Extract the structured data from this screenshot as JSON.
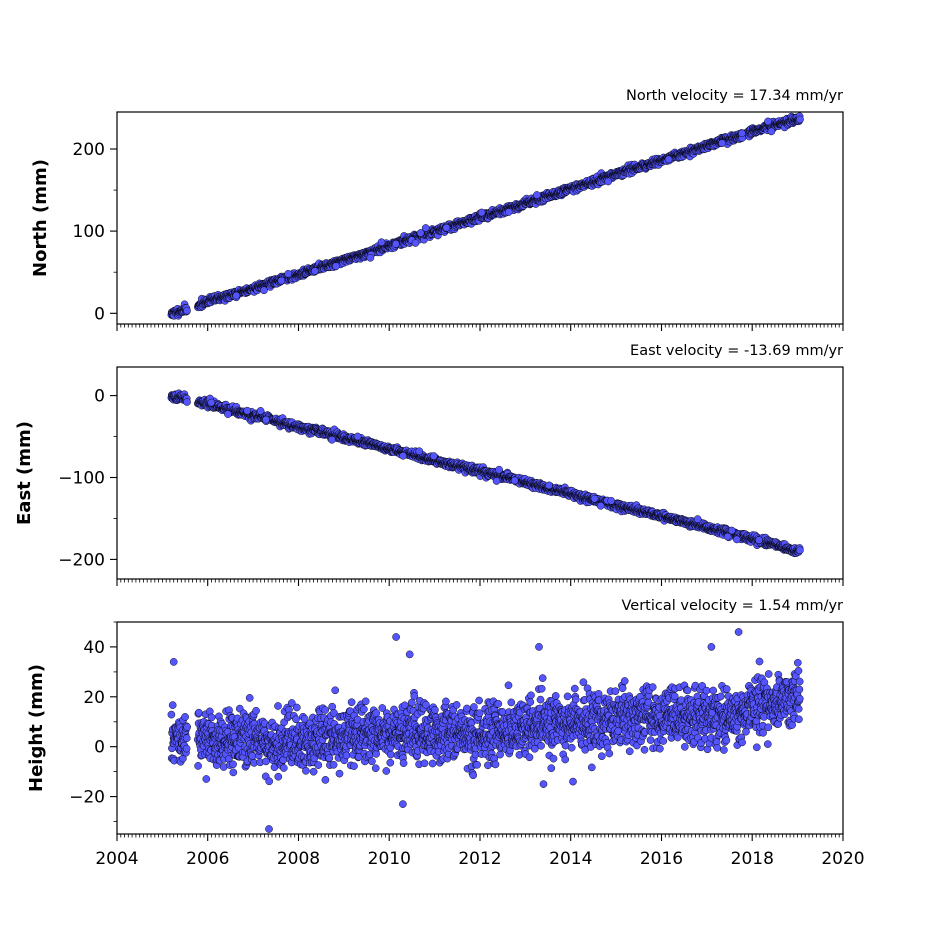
{
  "chart_data": [
    {
      "type": "scatter",
      "title": "North velocity = 17.34 mm/yr",
      "ylabel": "North (mm)",
      "xlabel": "",
      "xlim": [
        2004,
        2020
      ],
      "ylim": [
        -13,
        245
      ],
      "yticks": [
        0,
        100,
        200
      ],
      "ytick_labels": [
        "0",
        "100",
        "200"
      ],
      "show_xtick_labels": false,
      "grid": false,
      "marker_color": "#5555ff",
      "edge_color": "#000000",
      "data_start": 2005.2,
      "data_end": 2019.05,
      "series": [
        {
          "x": [
            2005.2,
            2005.3,
            2005.4,
            2005.5,
            2005.8,
            2006.0,
            2006.5,
            2007.0,
            2007.5,
            2008.0,
            2008.5,
            2009.0,
            2009.5,
            2010.0,
            2010.5,
            2011.0,
            2011.5,
            2012.0,
            2012.5,
            2013.0,
            2013.5,
            2014.0,
            2014.5,
            2015.0,
            2015.5,
            2016.0,
            2016.5,
            2017.0,
            2017.5,
            2018.0,
            2018.5,
            2019.0
          ],
          "y": [
            0,
            1,
            3,
            4,
            10,
            15,
            22,
            30,
            39,
            47,
            56,
            65,
            73,
            82,
            91,
            99,
            108,
            117,
            125,
            134,
            143,
            152,
            160,
            169,
            178,
            186,
            195,
            204,
            212,
            221,
            229,
            236
          ]
        }
      ]
    },
    {
      "type": "scatter",
      "title": "East velocity = -13.69 mm/yr",
      "ylabel": "East (mm)",
      "xlabel": "",
      "xlim": [
        2004,
        2020
      ],
      "ylim": [
        -224,
        35
      ],
      "yticks": [
        0,
        -100,
        -200
      ],
      "ytick_labels": [
        "0",
        "−100",
        "−200"
      ],
      "show_xtick_labels": false,
      "grid": false,
      "marker_color": "#5555ff",
      "edge_color": "#000000",
      "data_start": 2005.2,
      "data_end": 2019.05,
      "series": [
        {
          "x": [
            2005.2,
            2005.3,
            2005.4,
            2005.5,
            2005.8,
            2006.0,
            2006.5,
            2007.0,
            2007.5,
            2008.0,
            2008.5,
            2009.0,
            2009.5,
            2010.0,
            2010.5,
            2011.0,
            2011.5,
            2012.0,
            2012.5,
            2013.0,
            2013.5,
            2014.0,
            2014.5,
            2015.0,
            2015.5,
            2016.0,
            2016.5,
            2017.0,
            2017.5,
            2018.0,
            2018.5,
            2019.0
          ],
          "y": [
            0,
            -1,
            -2,
            -3,
            -7,
            -10,
            -17,
            -24,
            -31,
            -38,
            -44,
            -51,
            -58,
            -65,
            -72,
            -79,
            -86,
            -92,
            -99,
            -106,
            -113,
            -120,
            -127,
            -134,
            -140,
            -147,
            -154,
            -161,
            -168,
            -175,
            -182,
            -190
          ]
        }
      ]
    },
    {
      "type": "scatter",
      "title": "Vertical velocity = 1.54 mm/yr",
      "ylabel": "Height (mm)",
      "xlabel": "",
      "xlim": [
        2004,
        2020
      ],
      "ylim": [
        -35,
        50
      ],
      "yticks": [
        -20,
        0,
        20,
        40
      ],
      "ytick_labels": [
        "−20",
        "0",
        "20",
        "40"
      ],
      "xticks": [
        2004,
        2006,
        2008,
        2010,
        2012,
        2014,
        2016,
        2018,
        2020
      ],
      "xtick_labels": [
        "2004",
        "2006",
        "2008",
        "2010",
        "2012",
        "2014",
        "2016",
        "2018",
        "2020"
      ],
      "show_xtick_labels": true,
      "grid": false,
      "marker_color": "#5555ff",
      "edge_color": "#000000",
      "data_start": 2005.2,
      "data_end": 2019.05,
      "series": [
        {
          "x": [
            2005.2,
            2005.5,
            2006.0,
            2006.5,
            2007.0,
            2007.5,
            2008.0,
            2008.5,
            2009.0,
            2009.5,
            2010.0,
            2010.5,
            2011.0,
            2011.5,
            2012.0,
            2012.5,
            2013.0,
            2013.5,
            2014.0,
            2014.5,
            2015.0,
            2015.5,
            2016.0,
            2016.5,
            2017.0,
            2017.5,
            2018.0,
            2018.5,
            2019.0
          ],
          "y": [
            4,
            2,
            2,
            2,
            3,
            2,
            2,
            3,
            4,
            5,
            6,
            7,
            5,
            4,
            5,
            6,
            8,
            9,
            9,
            10,
            11,
            12,
            12,
            12,
            11,
            12,
            15,
            18,
            20
          ]
        },
        {
          "x": [
            2005.25,
            2007.35,
            2010.15,
            2010.3,
            2013.3,
            2017.7,
            2010.45,
            2013.4,
            2014.05,
            2017.1
          ],
          "y": [
            34,
            -33,
            44,
            -23,
            40,
            46,
            37,
            -15,
            -14,
            40
          ]
        }
      ]
    }
  ]
}
